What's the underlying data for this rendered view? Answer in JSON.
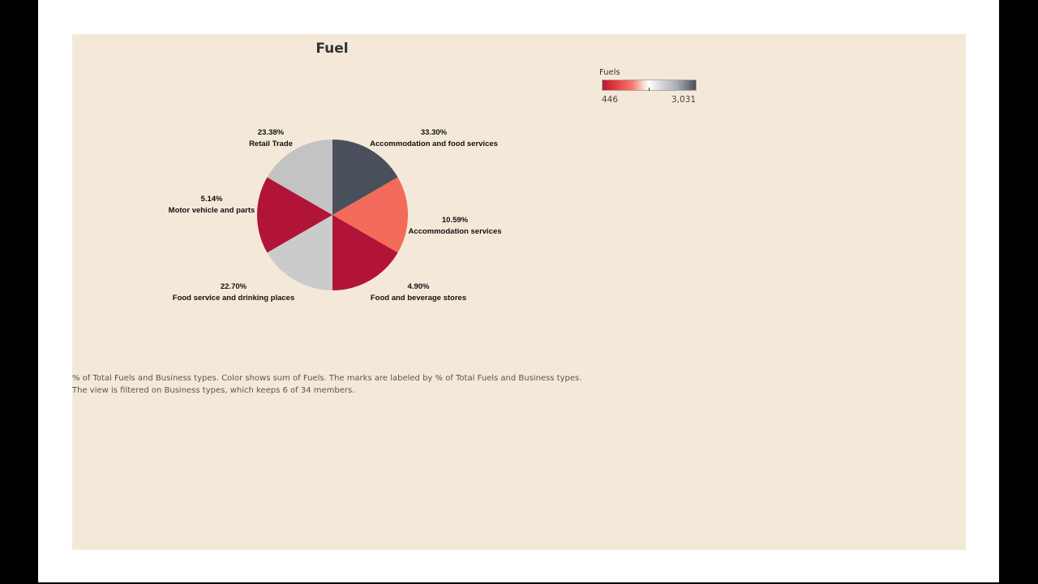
{
  "chart_data": {
    "type": "pie",
    "title": "Fuel",
    "slices": [
      {
        "category": "Accommodation and food services",
        "percent": 33.3,
        "label": "33.30%",
        "color": "#4a505b"
      },
      {
        "category": "Accommodation services",
        "percent": 10.59,
        "label": "10.59%",
        "color": "#f36b5a"
      },
      {
        "category": "Food and beverage stores",
        "percent": 4.9,
        "label": "4.90%",
        "color": "#b11436"
      },
      {
        "category": "Food service and drinking places",
        "percent": 22.7,
        "label": "22.70%",
        "color": "#cbcbcb"
      },
      {
        "category": "Motor vehicle and parts",
        "percent": 5.14,
        "label": "5.14%",
        "color": "#b11436"
      },
      {
        "category": "Retail Trade",
        "percent": 23.38,
        "label": "23.38%",
        "color": "#c3c3c3"
      }
    ],
    "legend": {
      "title": "Fuels",
      "min_label": "446",
      "max_label": "3,031",
      "colors": [
        "#b41a36",
        "#f47a72",
        "#ffffff",
        "#a9acb1",
        "#494f5a"
      ]
    }
  },
  "caption": {
    "line1": "% of Total Fuels and Business types.  Color shows sum of Fuels.  The marks are labeled by % of Total Fuels and Business types.",
    "line2": "The view is filtered on Business types, which keeps 6 of 34 members."
  }
}
